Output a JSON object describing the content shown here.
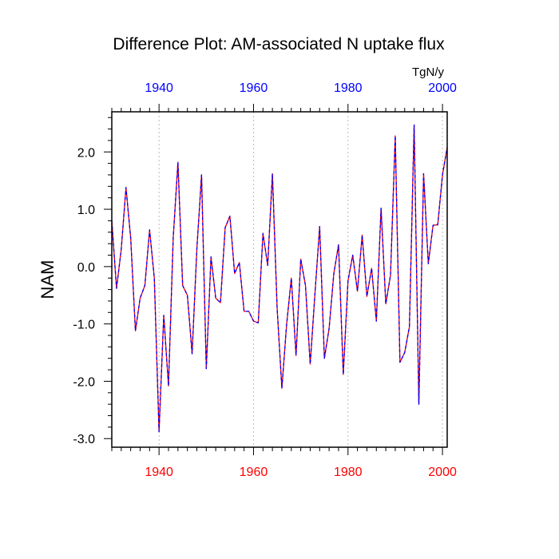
{
  "chart_data": {
    "type": "line",
    "title": "Difference Plot: AM-associated N uptake flux",
    "units": "TgN/y",
    "ylabel": "NAM",
    "xlabel": "",
    "xlim": [
      1930,
      2001
    ],
    "ylim": [
      -3.15,
      2.7
    ],
    "x_ticks": [
      1940,
      1960,
      1980,
      2000
    ],
    "y_ticks": [
      2.0,
      1.0,
      0.0,
      -1.0,
      -2.0,
      -3.0
    ],
    "y_tick_labels": [
      "2.0",
      "1.0",
      "0.0",
      "-1.0",
      "-2.0",
      "-3.0"
    ],
    "x_minor_step": 2,
    "y_minor_step": 0.2,
    "grid": "vertical dotted lines at major x ticks",
    "colors": {
      "top_axis_labels": "#0000ff",
      "bottom_axis_labels": "#ff0000",
      "series_line_1": "#ff0000",
      "series_line_2": "#0000ff",
      "grid": "#aaaaaa",
      "axis": "#000000"
    },
    "series": [
      {
        "line_style": "dashed",
        "x": [
          1930,
          1931,
          1932,
          1933,
          1934,
          1935,
          1936,
          1937,
          1938,
          1939,
          1940,
          1941,
          1942,
          1943,
          1944,
          1945,
          1946,
          1947,
          1948,
          1949,
          1950,
          1951,
          1952,
          1953,
          1954,
          1955,
          1956,
          1957,
          1958,
          1959,
          1960,
          1961,
          1962,
          1963,
          1964,
          1965,
          1966,
          1967,
          1968,
          1969,
          1970,
          1971,
          1972,
          1973,
          1974,
          1975,
          1976,
          1977,
          1978,
          1979,
          1980,
          1981,
          1982,
          1983,
          1984,
          1985,
          1986,
          1987,
          1988,
          1989,
          1990,
          1991,
          1992,
          1993,
          1994,
          1995,
          1996,
          1997,
          1998,
          1999,
          2000,
          2001
        ],
        "values": [
          0.8,
          -0.38,
          0.3,
          1.38,
          0.5,
          -1.12,
          -0.55,
          -0.33,
          0.64,
          -0.2,
          -2.88,
          -0.85,
          -2.08,
          0.5,
          1.82,
          -0.33,
          -0.5,
          -1.52,
          0.3,
          1.6,
          -1.78,
          0.17,
          -0.55,
          -0.63,
          0.68,
          0.88,
          -0.12,
          0.07,
          -0.78,
          -0.78,
          -0.95,
          -0.98,
          0.58,
          0.02,
          1.62,
          -0.73,
          -2.12,
          -1.02,
          -0.2,
          -1.55,
          0.13,
          -0.33,
          -1.7,
          -0.48,
          0.7,
          -1.6,
          -1.08,
          -0.12,
          0.38,
          -1.88,
          -0.25,
          0.2,
          -0.43,
          0.55,
          -0.52,
          -0.03,
          -0.95,
          1.02,
          -0.65,
          -0.15,
          2.28,
          -1.67,
          -1.5,
          -1.05,
          2.47,
          -2.4,
          1.62,
          0.05,
          0.72,
          0.73,
          1.6,
          2.08
        ]
      }
    ]
  }
}
